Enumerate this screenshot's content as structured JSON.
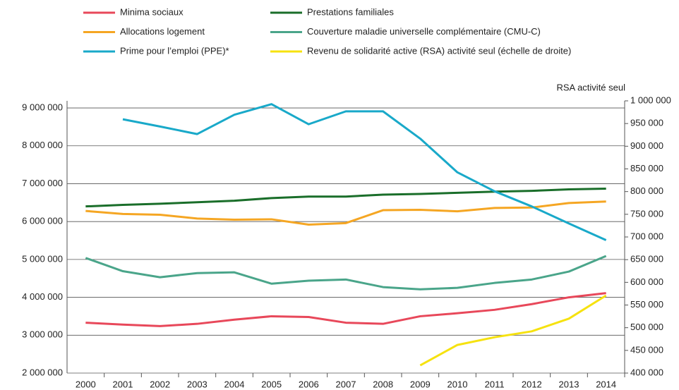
{
  "chart_data": {
    "type": "line",
    "categories": [
      "2000",
      "2001",
      "2002",
      "2003",
      "2004",
      "2005",
      "2006",
      "2007",
      "2008",
      "2009",
      "2010",
      "2011",
      "2012",
      "2013",
      "2014"
    ],
    "y2_label": "RSA activité seul",
    "ylim": [
      2000000,
      9187000
    ],
    "yticks": [
      {
        "value": 2000000,
        "label": "2 000 000"
      },
      {
        "value": 3000000,
        "label": "3 000 000"
      },
      {
        "value": 4000000,
        "label": "4 000 000"
      },
      {
        "value": 5000000,
        "label": "5 000 000"
      },
      {
        "value": 6000000,
        "label": "6 000 000"
      },
      {
        "value": 7000000,
        "label": "7 000 000"
      },
      {
        "value": 8000000,
        "label": "8 000 000"
      },
      {
        "value": 9000000,
        "label": "9 000 000"
      }
    ],
    "y2lim": [
      400000,
      1000000
    ],
    "y2ticks": [
      {
        "value": 400000,
        "label": "400 000"
      },
      {
        "value": 450000,
        "label": "450 000"
      },
      {
        "value": 500000,
        "label": "500 000"
      },
      {
        "value": 550000,
        "label": "550 000"
      },
      {
        "value": 600000,
        "label": "600 000"
      },
      {
        "value": 650000,
        "label": "650 000"
      },
      {
        "value": 700000,
        "label": "700 000"
      },
      {
        "value": 750000,
        "label": "750 000"
      },
      {
        "value": 800000,
        "label": "800 000"
      },
      {
        "value": 850000,
        "label": "850 000"
      },
      {
        "value": 900000,
        "label": "900 000"
      },
      {
        "value": 950000,
        "label": "950 000"
      },
      {
        "value": 1000000,
        "label": "1 000 000"
      }
    ],
    "grid": true,
    "series": [
      {
        "name": "Minima sociaux",
        "color": "#e8485a",
        "values": [
          3330000,
          3280000,
          3240000,
          3300000,
          3410000,
          3500000,
          3480000,
          3330000,
          3300000,
          3500000,
          3580000,
          3670000,
          3820000,
          4000000,
          4110000
        ]
      },
      {
        "name": "Prestations familiales",
        "color": "#1a6e2a",
        "values": [
          6400000,
          6440000,
          6470000,
          6510000,
          6550000,
          6620000,
          6660000,
          6660000,
          6710000,
          6730000,
          6760000,
          6790000,
          6810000,
          6850000,
          6870000
        ]
      },
      {
        "name": "Allocations logement",
        "color": "#f5a623",
        "values": [
          6280000,
          6200000,
          6180000,
          6080000,
          6050000,
          6060000,
          5920000,
          5960000,
          6300000,
          6310000,
          6270000,
          6360000,
          6370000,
          6490000,
          6530000
        ]
      },
      {
        "name": "Couverture maladie universelle complémentaire (CMU-C)",
        "color": "#4aa58a",
        "values": [
          5040000,
          4690000,
          4530000,
          4640000,
          4660000,
          4360000,
          4440000,
          4470000,
          4270000,
          4210000,
          4250000,
          4380000,
          4470000,
          4680000,
          5090000
        ]
      },
      {
        "name": "Prime pour l’emploi (PPE)*",
        "color": "#19a9c9",
        "values": [
          null,
          8700000,
          8510000,
          8310000,
          8820000,
          9100000,
          8570000,
          8910000,
          8910000,
          8190000,
          7300000,
          6800000,
          6400000,
          5950000,
          5510000
        ]
      },
      {
        "name": "Revenu de solidarité active (RSA) activité seul (échelle de droite)",
        "color": "#f6e20f",
        "axis": "y2",
        "values": [
          null,
          null,
          null,
          null,
          null,
          null,
          null,
          null,
          null,
          417000,
          462000,
          479000,
          492000,
          520000,
          571000
        ]
      }
    ]
  }
}
